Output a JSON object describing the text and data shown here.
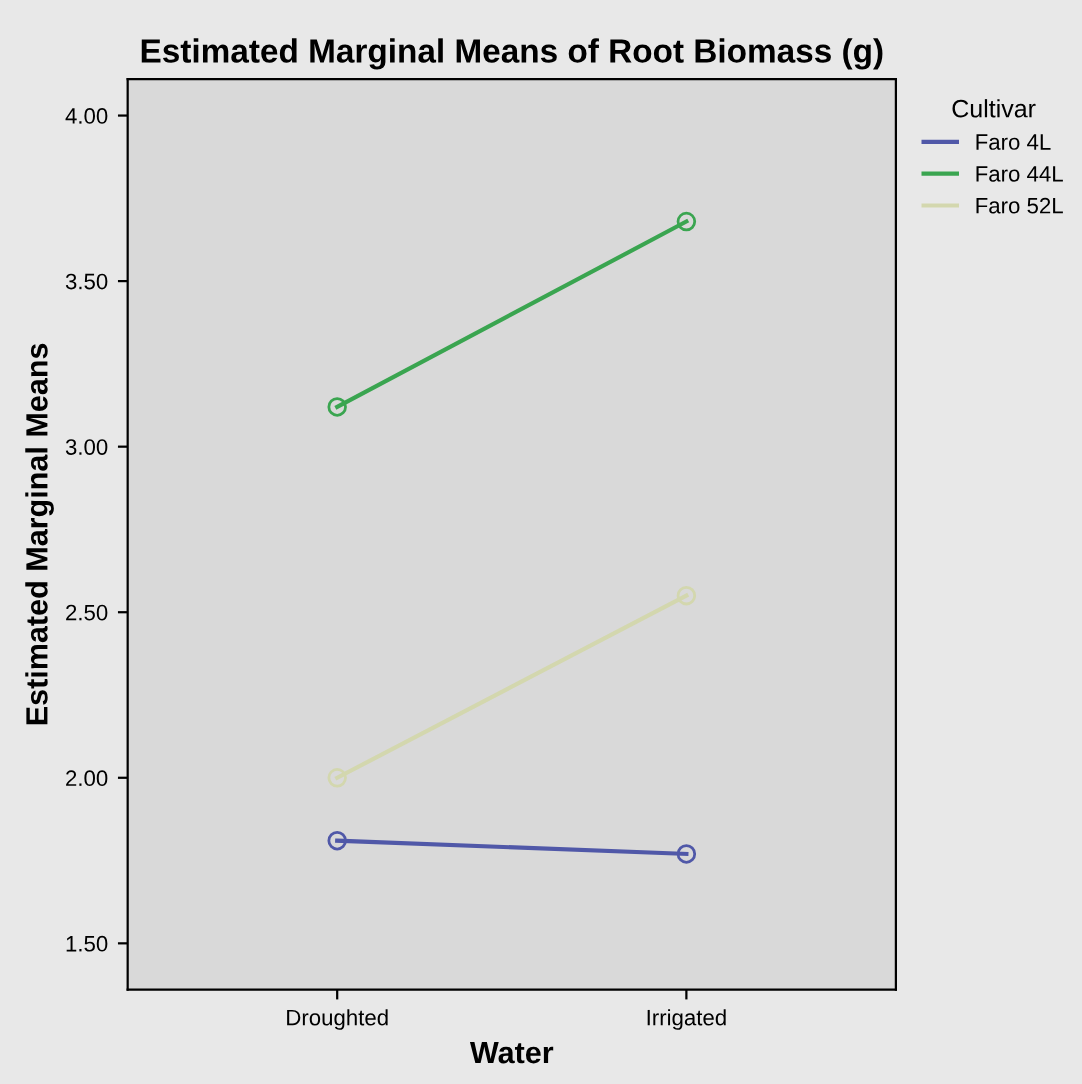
{
  "chart_data": {
    "type": "line",
    "title": "Estimated Marginal Means of Root Biomass (g)",
    "xlabel": "Water",
    "ylabel": "Estimated Marginal Means",
    "legend_title": "Cultivar",
    "categories": [
      "Droughted",
      "Irrigated"
    ],
    "series": [
      {
        "name": "Faro 4L",
        "color": "#5058a8",
        "values": [
          1.81,
          1.77
        ]
      },
      {
        "name": "Faro 44L",
        "color": "#3aa550",
        "values": [
          3.12,
          3.68
        ]
      },
      {
        "name": "Faro 52L",
        "color": "#d3d7ae",
        "values": [
          2.0,
          2.55
        ]
      }
    ],
    "ylim": [
      1.36,
      4.11
    ],
    "yticks": [
      {
        "value": 1.5,
        "label": "1.50"
      },
      {
        "value": 2.0,
        "label": "2.00"
      },
      {
        "value": 2.5,
        "label": "2.50"
      },
      {
        "value": 3.0,
        "label": "3.00"
      },
      {
        "value": 3.5,
        "label": "3.50"
      },
      {
        "value": 4.0,
        "label": "4.00"
      }
    ],
    "marker": "circle",
    "legend": "top right",
    "grid": false
  }
}
